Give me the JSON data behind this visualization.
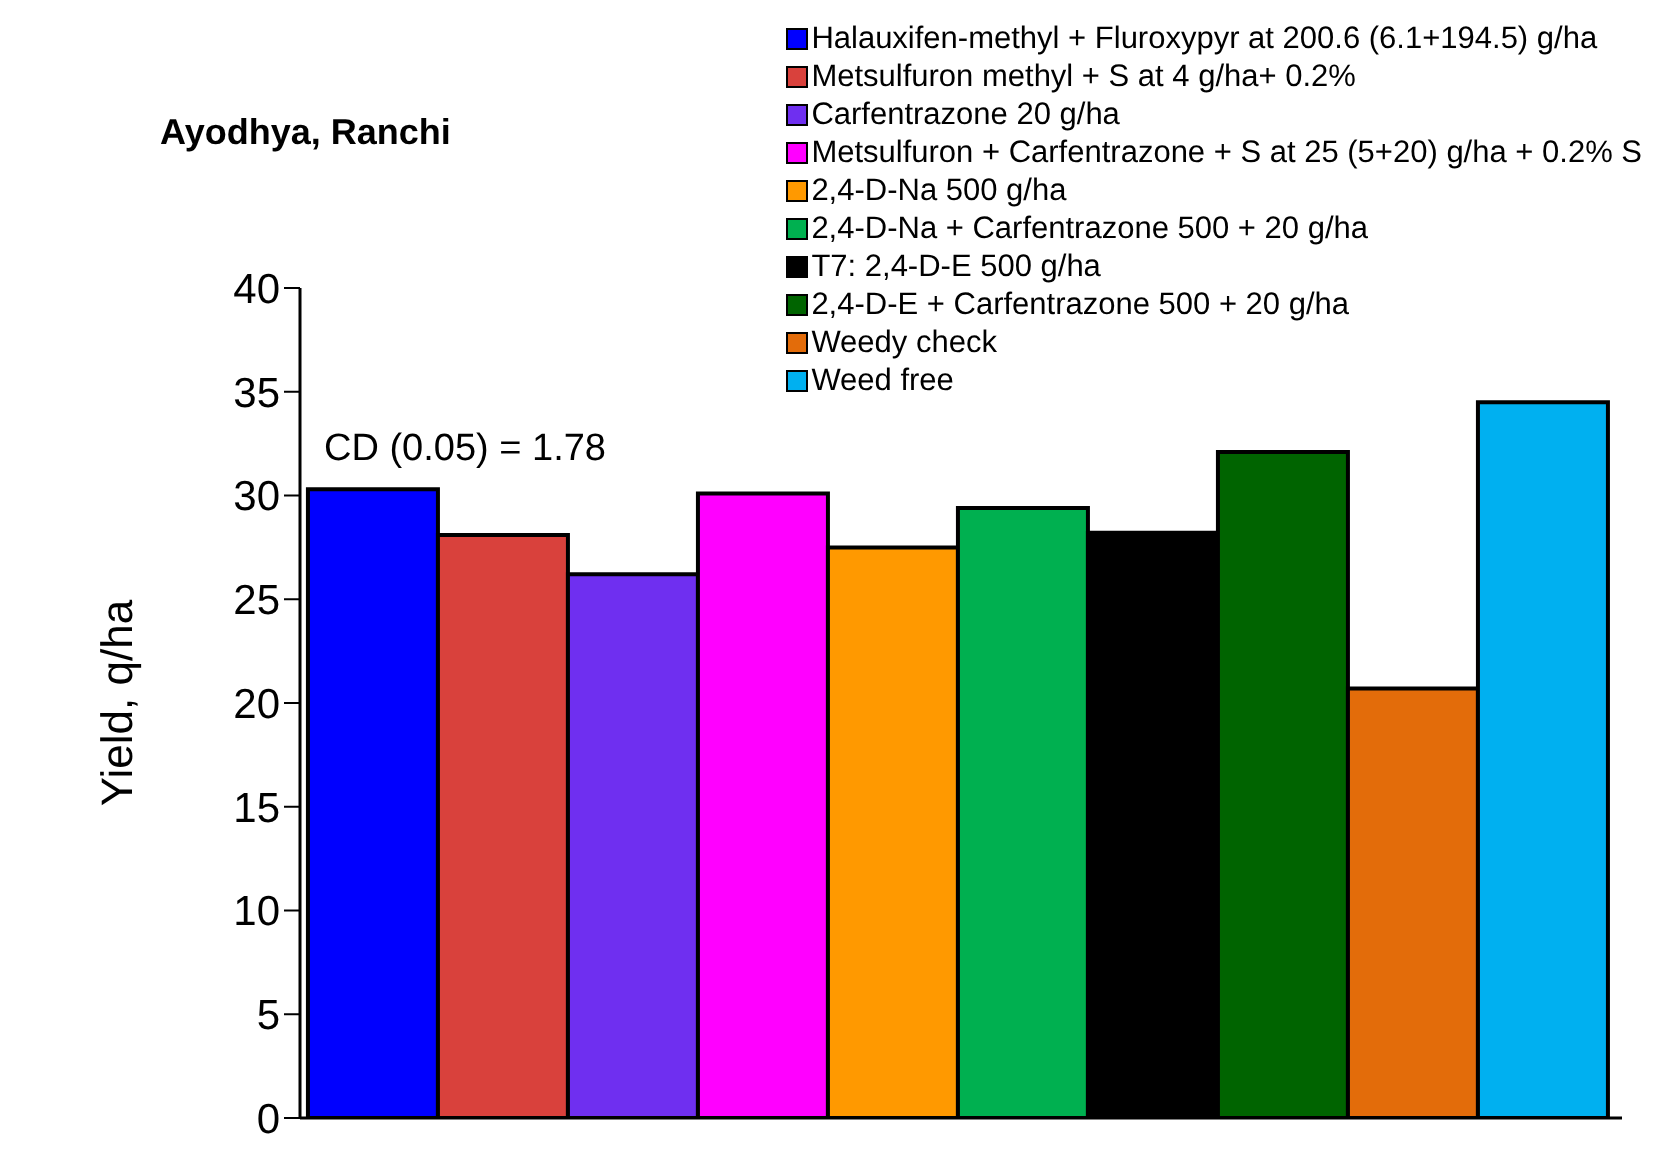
{
  "chart_data": {
    "type": "bar",
    "title": "Ayodhya, Ranchi",
    "ylabel": "Yield, q/ha",
    "categories": [
      null
    ],
    "series": [
      {
        "name": "Halauxifen-methyl + Fluroxypyr at 200.6 (6.1+194.5) g/ha",
        "color": "#0000ff",
        "values": [
          30.3
        ]
      },
      {
        "name": "Metsulfuron methyl + S at 4 g/ha+ 0.2%",
        "color": "#d9413c",
        "values": [
          28.1
        ]
      },
      {
        "name": "Carfentrazone 20 g/ha",
        "color": "#6f2ff0",
        "values": [
          26.2
        ]
      },
      {
        "name": "Metsulfuron + Carfentrazone + S at 25 (5+20) g/ha + 0.2% S",
        "color": "#ff00ff",
        "values": [
          30.1
        ]
      },
      {
        "name": "2,4-D-Na 500 g/ha",
        "color": "#ff9900",
        "values": [
          27.5
        ]
      },
      {
        "name": "2,4-D-Na + Carfentrazone 500 + 20 g/ha",
        "color": "#00b050",
        "values": [
          29.4
        ]
      },
      {
        "name": "T7: 2,4-D-E 500 g/ha",
        "color": "#000000",
        "values": [
          28.2
        ]
      },
      {
        "name": "2,4-D-E + Carfentrazone 500 + 20 g/ha",
        "color": "#006400",
        "values": [
          32.1
        ]
      },
      {
        "name": "Weedy check",
        "color": "#e36c0a",
        "values": [
          20.7
        ]
      },
      {
        "name": "Weed free",
        "color": "#00b0f0",
        "values": [
          34.5
        ]
      }
    ],
    "ylim": [
      0,
      40
    ],
    "yticks": [
      0,
      5,
      10,
      15,
      20,
      25,
      30,
      35,
      40
    ],
    "annotations": [
      "CD (0.05) = 1.78"
    ],
    "legend": "top right",
    "tick_labels": "y",
    "grid": false
  }
}
